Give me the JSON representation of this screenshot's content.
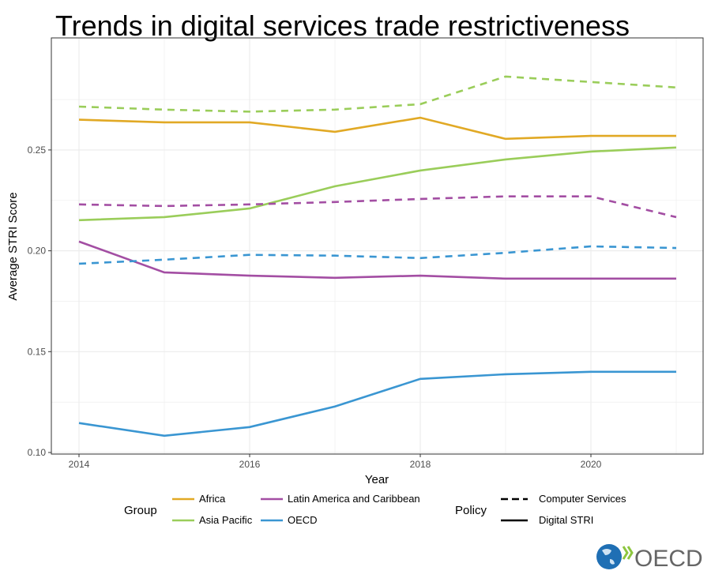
{
  "chart_data": {
    "type": "line",
    "title": "Trends in digital services trade restrictiveness",
    "xlabel": "Year",
    "ylabel": "Average STRI Score",
    "xlim": [
      2014,
      2021
    ],
    "ylim": [
      0.1,
      0.29
    ],
    "xticks": [
      2014,
      2016,
      2018,
      2020
    ],
    "yticks": [
      0.1,
      0.15,
      0.2,
      0.25
    ],
    "ytick_labels": [
      "0.10",
      "0.15",
      "0.20",
      "0.25"
    ],
    "grid": true,
    "x": [
      2014,
      2015,
      2016,
      2017,
      2018,
      2019,
      2020,
      2021
    ],
    "series": [
      {
        "group": "Asia Pacific",
        "policy": "Computer Services",
        "color": "#9ACD5A",
        "values": [
          0.2715,
          0.27,
          0.269,
          0.27,
          0.2727,
          0.2864,
          0.2837,
          0.281
        ]
      },
      {
        "group": "Africa",
        "policy": "Digital STRI",
        "color": "#E1A925",
        "values": [
          0.265,
          0.2637,
          0.2637,
          0.259,
          0.266,
          0.2555,
          0.257,
          0.257
        ]
      },
      {
        "group": "Asia Pacific",
        "policy": "Digital STRI",
        "color": "#9ACD5A",
        "values": [
          0.2152,
          0.2167,
          0.221,
          0.232,
          0.2398,
          0.2453,
          0.2492,
          0.2512
        ]
      },
      {
        "group": "Latin America and Caribbean",
        "policy": "Computer Services",
        "color": "#A34EA3",
        "values": [
          0.223,
          0.2222,
          0.223,
          0.2242,
          0.2257,
          0.227,
          0.227,
          0.2167
        ]
      },
      {
        "group": "Latin America and Caribbean",
        "policy": "Digital STRI",
        "color": "#A34EA3",
        "values": [
          0.2046,
          0.1893,
          0.1877,
          0.1866,
          0.1877,
          0.1862,
          0.1862,
          0.1862
        ]
      },
      {
        "group": "OECD",
        "policy": "Computer Services",
        "color": "#3A96D2",
        "values": [
          0.1936,
          0.1956,
          0.198,
          0.1976,
          0.1964,
          0.199,
          0.2022,
          0.2014
        ]
      },
      {
        "group": "OECD",
        "policy": "Digital STRI",
        "color": "#3A96D2",
        "values": [
          0.1146,
          0.1083,
          0.1126,
          0.1228,
          0.1365,
          0.1388,
          0.14,
          0.14
        ]
      }
    ],
    "legend": {
      "placement": "bottom",
      "group_title": "Group",
      "groups": [
        {
          "name": "Africa",
          "color": "#E1A925"
        },
        {
          "name": "Asia Pacific",
          "color": "#9ACD5A"
        },
        {
          "name": "Latin America and Caribbean",
          "color": "#A34EA3"
        },
        {
          "name": "OECD",
          "color": "#3A96D2"
        }
      ],
      "policy_title": "Policy",
      "policies": [
        {
          "name": "Computer Services",
          "dash": true
        },
        {
          "name": "Digital STRI",
          "dash": false
        }
      ]
    }
  },
  "logo": {
    "text": "OECD"
  }
}
